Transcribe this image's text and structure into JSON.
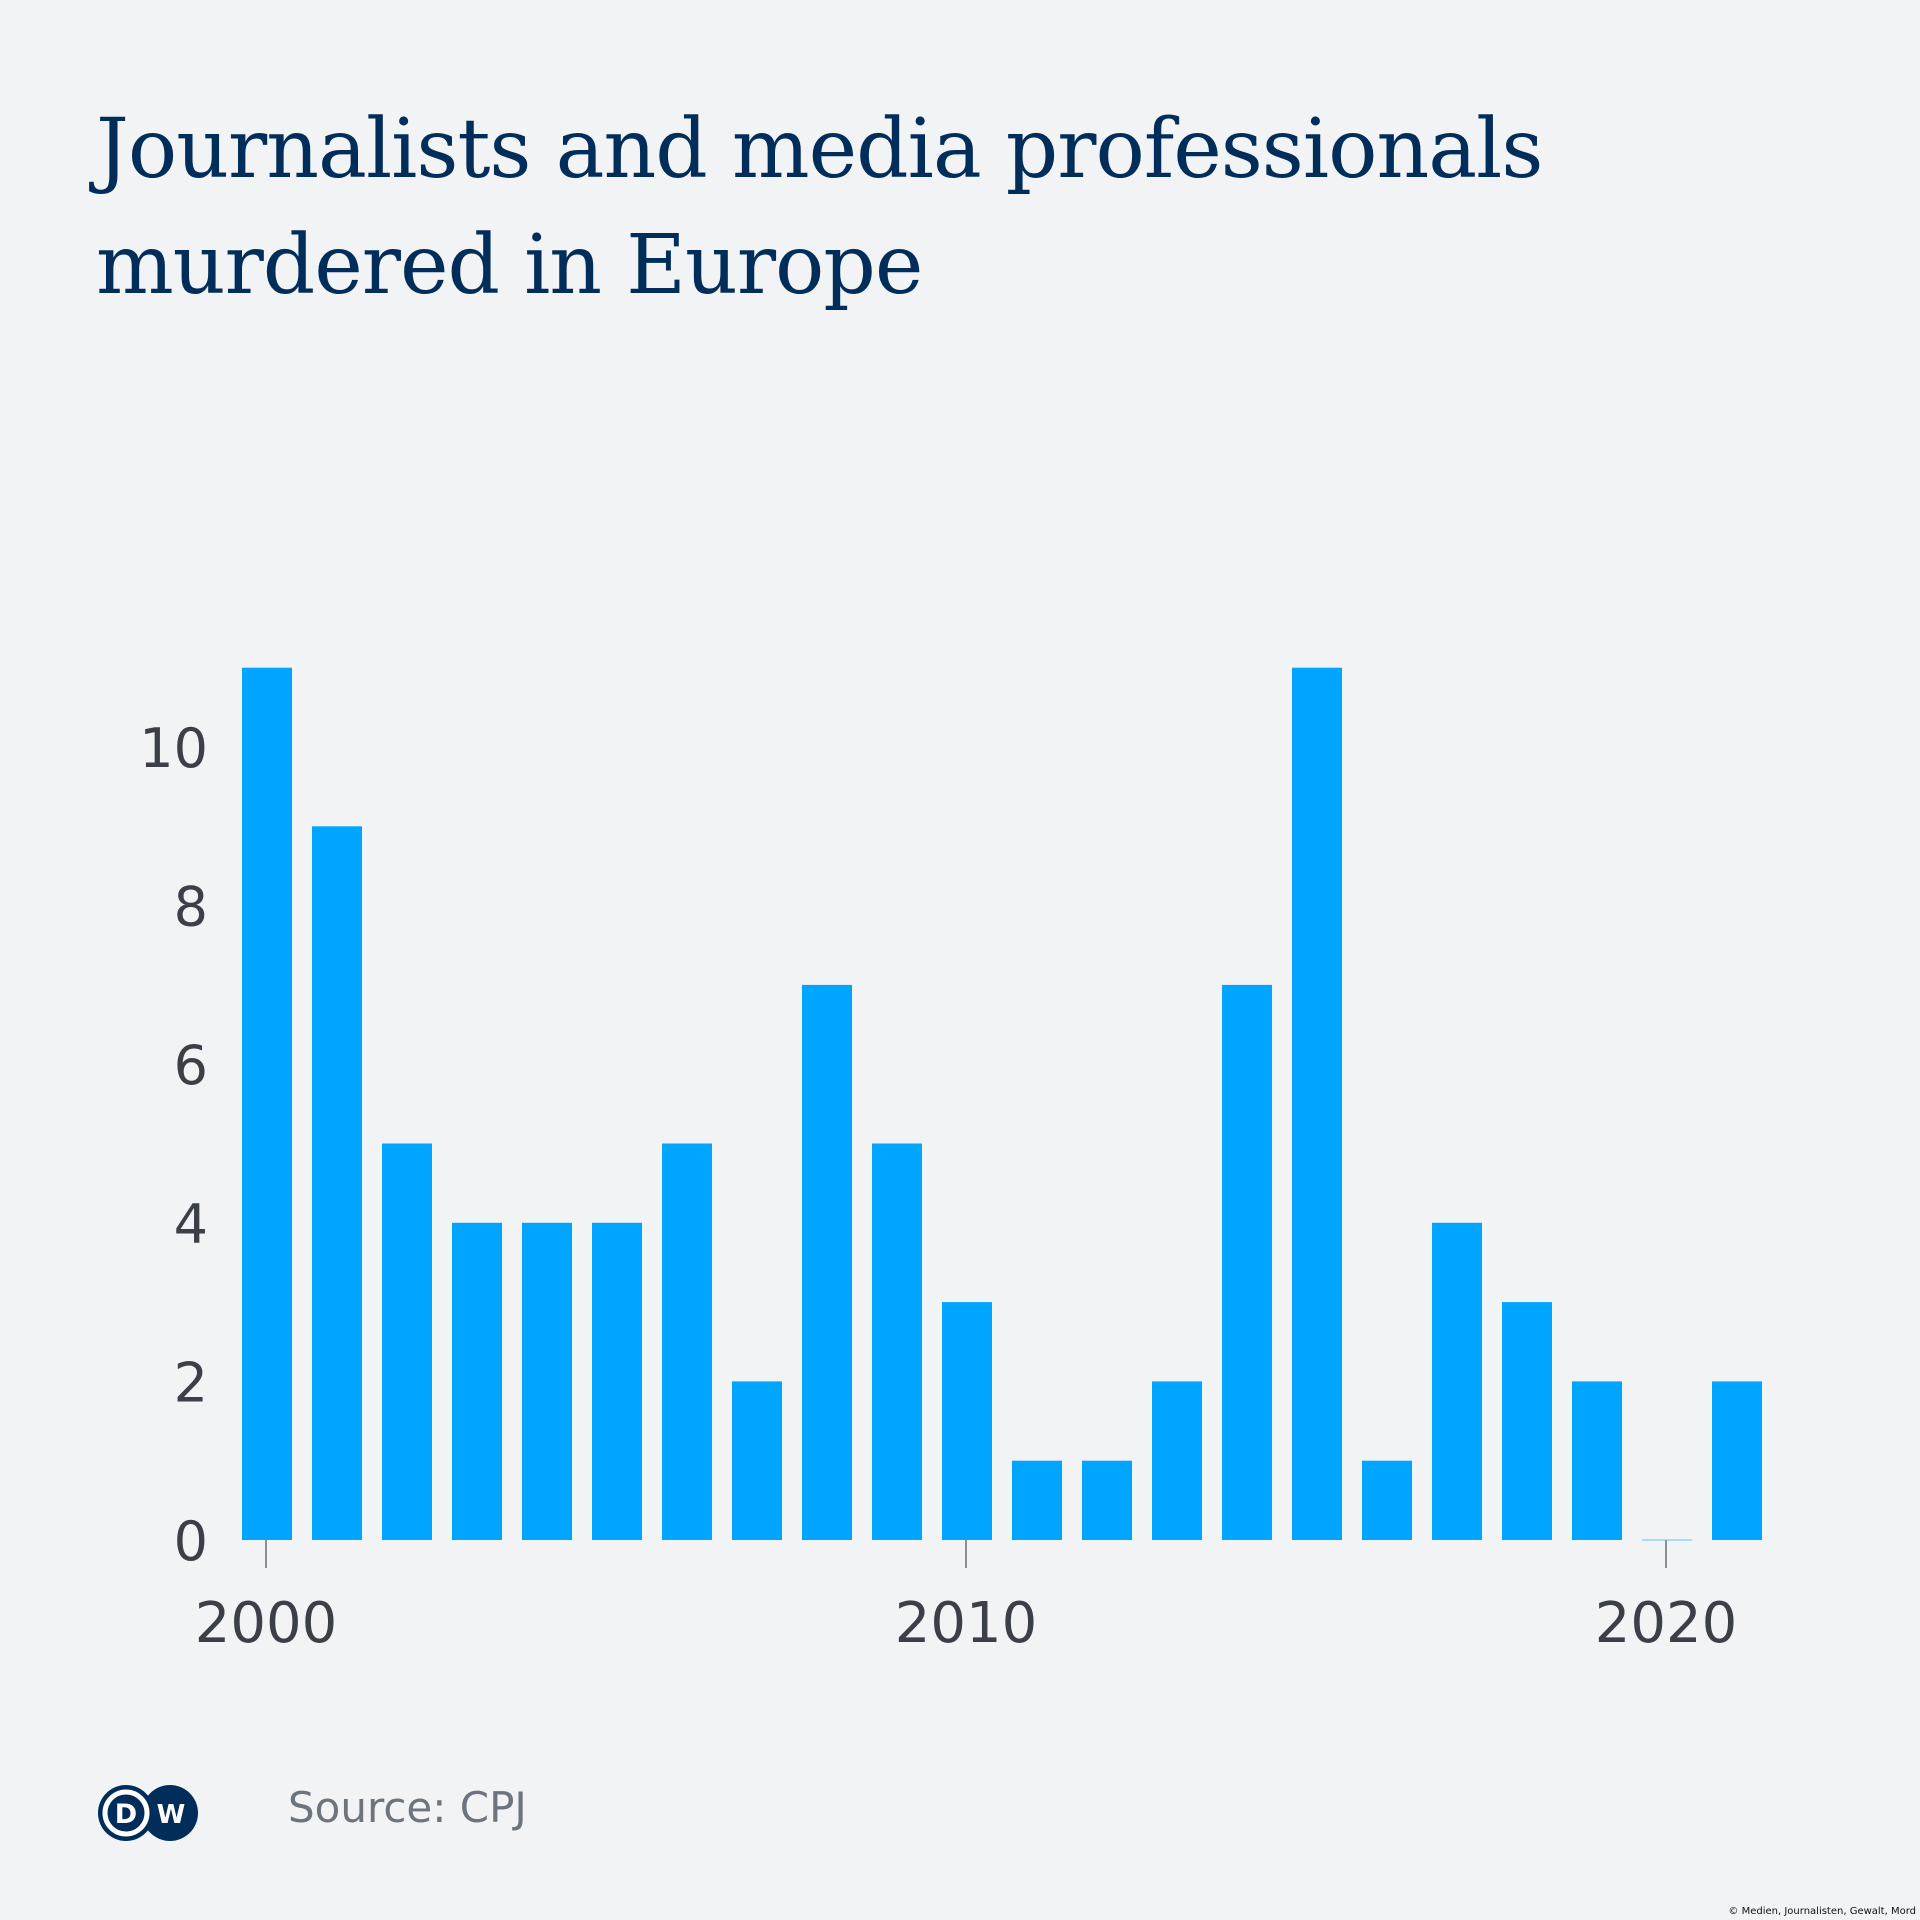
{
  "title": "Journalists and media professionals murdered in Europe",
  "source": "Source: CPJ",
  "logo_text": {
    "left": "D",
    "right": "W"
  },
  "credit": "© Medien, Journalisten, Gewalt, Mord",
  "colors": {
    "bar": "#00a5ff",
    "title": "#002d5a",
    "background": "#f1f3f5",
    "axis_text": "#3b4048",
    "logo": "#002d5a"
  },
  "chart_data": {
    "type": "bar",
    "title": "Journalists and media professionals murdered in Europe",
    "xlabel": "",
    "ylabel": "",
    "categories": [
      "2000",
      "2001",
      "2002",
      "2003",
      "2004",
      "2005",
      "2006",
      "2007",
      "2008",
      "2009",
      "2010",
      "2011",
      "2012",
      "2013",
      "2014",
      "2015",
      "2016",
      "2017",
      "2018",
      "2019",
      "2020",
      "2021"
    ],
    "values": [
      11,
      9,
      5,
      4,
      4,
      4,
      5,
      2,
      7,
      5,
      3,
      1,
      1,
      2,
      7,
      11,
      1,
      4,
      3,
      2,
      0,
      2
    ],
    "ylim": [
      0,
      11
    ],
    "yticks": [
      "0",
      "2",
      "4",
      "6",
      "8",
      "10"
    ],
    "xticks": [
      "2000",
      "2010",
      "2020"
    ],
    "grid": false,
    "legend": "none"
  }
}
